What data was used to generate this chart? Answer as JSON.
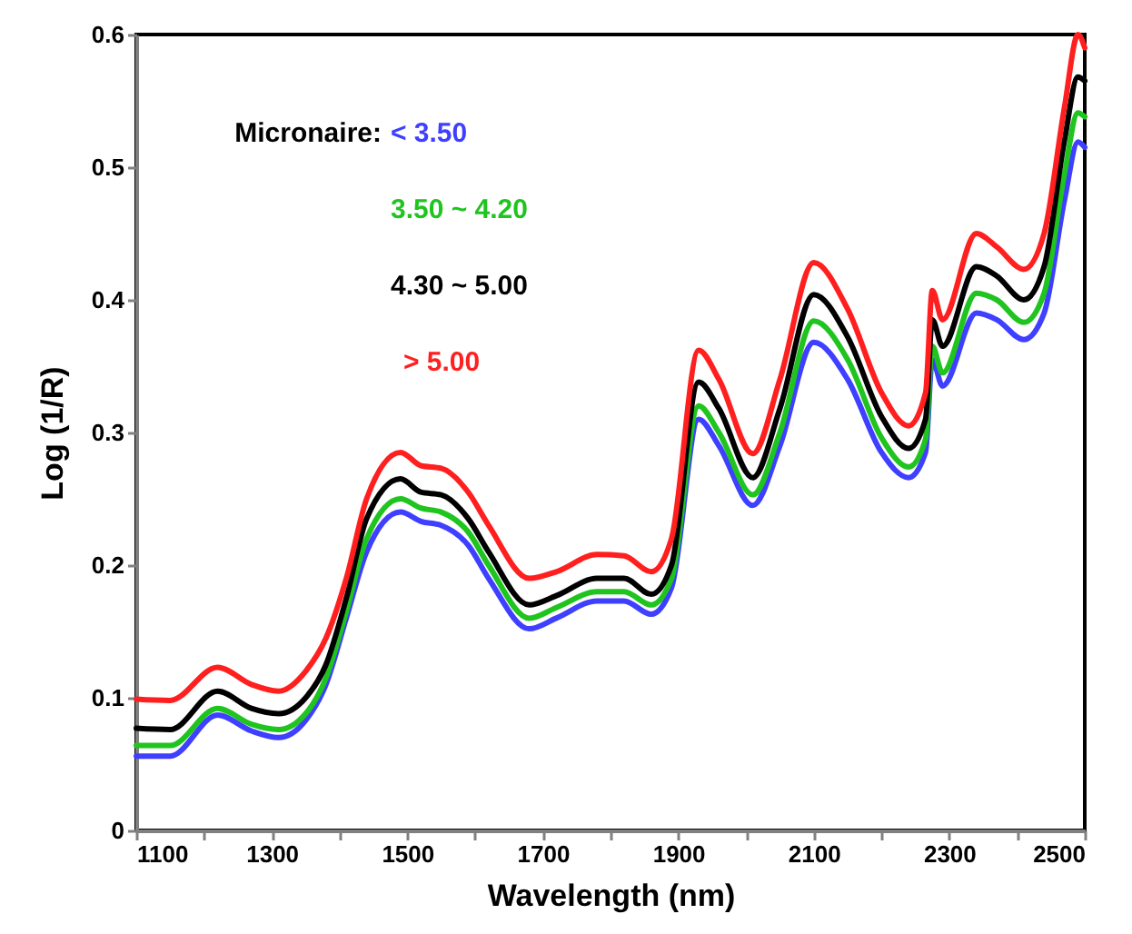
{
  "chart_data": {
    "type": "line",
    "xlabel": "Wavelength (nm)",
    "ylabel": "Log (1/R)",
    "legend_title": "Micronaire:",
    "legend": "top left",
    "grid": false,
    "marker": "none",
    "line_style": "solid",
    "x": [
      1100,
      1150,
      1220,
      1270,
      1310,
      1350,
      1380,
      1410,
      1440,
      1490,
      1520,
      1550,
      1590,
      1620,
      1680,
      1720,
      1780,
      1820,
      1860,
      1890,
      1930,
      1960,
      2010,
      2050,
      2100,
      2150,
      2200,
      2240,
      2265,
      2275,
      2290,
      2340,
      2370,
      2410,
      2440,
      2470,
      2490,
      2500
    ],
    "xlim": [
      1100,
      2500
    ],
    "xticks": [
      1100,
      {
        "value": 1200,
        "label": null
      },
      1300,
      {
        "value": 1400,
        "label": null
      },
      1500,
      {
        "value": 1600,
        "label": null
      },
      1700,
      {
        "value": 1800,
        "label": null
      },
      1900,
      {
        "value": 2000,
        "label": null
      },
      2100,
      {
        "value": 2200,
        "label": null
      },
      2300,
      {
        "value": 2400,
        "label": null
      },
      2500
    ],
    "ylim": [
      0,
      0.6
    ],
    "yticks": [
      0,
      0.1,
      0.2,
      0.3,
      0.4,
      0.5,
      0.6
    ],
    "series": [
      {
        "name": "< 3.50",
        "color": "#3f3fff",
        "values": [
          0.056,
          0.056,
          0.087,
          0.075,
          0.07,
          0.083,
          0.11,
          0.16,
          0.21,
          0.24,
          0.233,
          0.23,
          0.215,
          0.19,
          0.152,
          0.16,
          0.173,
          0.173,
          0.163,
          0.183,
          0.31,
          0.29,
          0.245,
          0.29,
          0.368,
          0.34,
          0.285,
          0.266,
          0.285,
          0.355,
          0.335,
          0.39,
          0.385,
          0.37,
          0.39,
          0.475,
          0.519,
          0.515
        ]
      },
      {
        "name": "3.50 ~ 4.20",
        "color": "#1fc41f",
        "values": [
          0.064,
          0.064,
          0.092,
          0.08,
          0.076,
          0.088,
          0.115,
          0.165,
          0.22,
          0.25,
          0.243,
          0.24,
          0.225,
          0.2,
          0.16,
          0.168,
          0.18,
          0.18,
          0.17,
          0.19,
          0.32,
          0.3,
          0.253,
          0.3,
          0.384,
          0.355,
          0.296,
          0.274,
          0.295,
          0.365,
          0.345,
          0.405,
          0.4,
          0.383,
          0.405,
          0.495,
          0.541,
          0.538
        ]
      },
      {
        "name": "4.30 ~ 5.00",
        "color": "#000000",
        "values": [
          0.077,
          0.076,
          0.105,
          0.092,
          0.088,
          0.1,
          0.125,
          0.175,
          0.235,
          0.265,
          0.255,
          0.253,
          0.235,
          0.21,
          0.17,
          0.177,
          0.19,
          0.19,
          0.178,
          0.2,
          0.338,
          0.318,
          0.266,
          0.318,
          0.404,
          0.372,
          0.312,
          0.288,
          0.31,
          0.385,
          0.365,
          0.425,
          0.418,
          0.4,
          0.425,
          0.52,
          0.568,
          0.565
        ]
      },
      {
        "name": "> 5.00",
        "color": "#ff1f1f",
        "values": [
          0.099,
          0.098,
          0.123,
          0.11,
          0.105,
          0.12,
          0.145,
          0.19,
          0.25,
          0.285,
          0.275,
          0.273,
          0.255,
          0.23,
          0.19,
          0.195,
          0.208,
          0.207,
          0.195,
          0.22,
          0.362,
          0.34,
          0.284,
          0.34,
          0.428,
          0.393,
          0.33,
          0.305,
          0.33,
          0.407,
          0.385,
          0.45,
          0.44,
          0.423,
          0.45,
          0.545,
          0.6,
          0.59
        ]
      }
    ]
  }
}
